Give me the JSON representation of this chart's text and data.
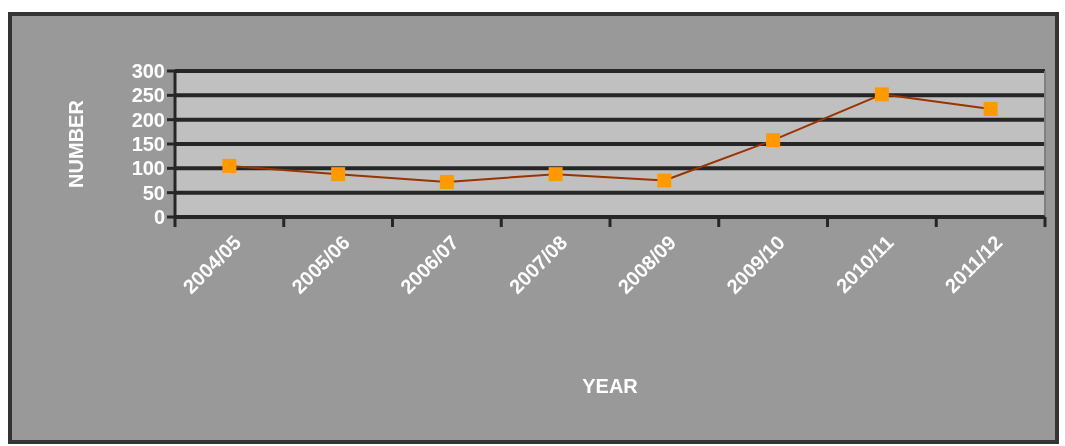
{
  "chart_data": {
    "type": "line",
    "xlabel": "YEAR",
    "ylabel": "NUMBER",
    "categories": [
      "2004/05",
      "2005/06",
      "2006/07",
      "2007/08",
      "2008/09",
      "2009/10",
      "2010/11",
      "2011/12"
    ],
    "series": [
      {
        "color": "#993300",
        "values": [
          105,
          88,
          72,
          88,
          75,
          158,
          252,
          222
        ]
      }
    ],
    "ylim": [
      0,
      300
    ],
    "yticks": [
      0,
      50,
      100,
      150,
      200,
      250,
      300
    ],
    "grid": "y",
    "marker": "square",
    "line_style": "solid"
  }
}
